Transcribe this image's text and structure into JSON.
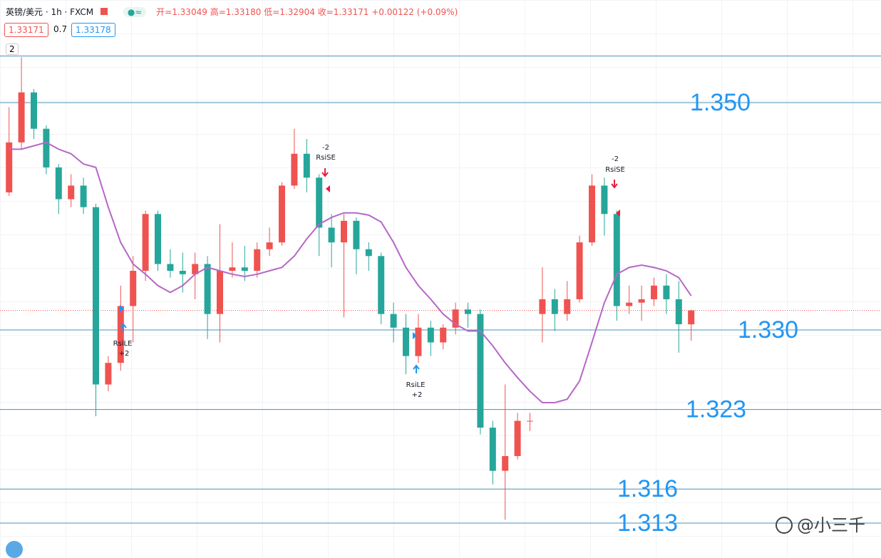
{
  "header": {
    "symbol": "英镑/美元 · 1h · FXCM",
    "open": "开=1.33049",
    "high": "高=1.33180",
    "low": "低=1.32904",
    "close": "收=1.33171",
    "change": "+0.00122 (+0.09%)",
    "bid": "1.33171",
    "spread": "0.7",
    "ask": "1.33178",
    "indicators": "2"
  },
  "watermark": "@小三千",
  "chart_data": {
    "type": "candlestick",
    "up_color": "#ef5350",
    "down_color": "#26a69a",
    "ylim": [
      1.30993,
      1.35903
    ],
    "open": [
      1.3421,
      1.3465,
      1.3509,
      1.3477,
      1.3443,
      1.3415,
      1.3427,
      1.3408,
      1.3252,
      1.3271,
      1.3321,
      1.3352,
      1.3402,
      1.3358,
      1.3352,
      1.3349,
      1.3358,
      1.3314,
      1.3352,
      1.3355,
      1.3352,
      1.3371,
      1.3377,
      1.3427,
      1.3455,
      1.3434,
      1.339,
      1.3377,
      1.3396,
      1.3371,
      1.3365,
      1.3314,
      1.3302,
      1.3277,
      1.3302,
      1.3289,
      1.3302,
      1.3318,
      1.3314,
      1.3214,
      1.3176,
      1.3189,
      1.322,
      1.3314,
      1.3327,
      1.3314,
      1.3327,
      1.3377,
      1.3427,
      1.3402,
      1.3321,
      1.3324,
      1.3327,
      1.3339,
      1.3327,
      1.33049
    ],
    "high": [
      1.3496,
      1.354,
      1.3512,
      1.348,
      1.3446,
      1.3437,
      1.3434,
      1.3411,
      1.3277,
      1.3339,
      1.3365,
      1.3405,
      1.3405,
      1.3371,
      1.3368,
      1.3368,
      1.3365,
      1.3393,
      1.3377,
      1.3374,
      1.3377,
      1.339,
      1.343,
      1.3477,
      1.3468,
      1.3437,
      1.3402,
      1.3402,
      1.3399,
      1.3377,
      1.3368,
      1.3324,
      1.3314,
      1.3314,
      1.3308,
      1.3305,
      1.3324,
      1.3324,
      1.3318,
      1.322,
      1.3252,
      1.3227,
      1.3227,
      1.3355,
      1.3336,
      1.3343,
      1.3383,
      1.3437,
      1.3434,
      1.3405,
      1.3339,
      1.3339,
      1.3346,
      1.3349,
      1.3343,
      1.3318
    ],
    "low": [
      1.3418,
      1.3459,
      1.3468,
      1.3437,
      1.3402,
      1.3408,
      1.3402,
      1.3224,
      1.3246,
      1.3264,
      1.3289,
      1.3343,
      1.3352,
      1.3346,
      1.3333,
      1.3327,
      1.3292,
      1.3289,
      1.3346,
      1.3343,
      1.3346,
      1.3365,
      1.3374,
      1.3424,
      1.3421,
      1.3365,
      1.3355,
      1.3311,
      1.3349,
      1.3352,
      1.3305,
      1.3289,
      1.3261,
      1.3271,
      1.3277,
      1.3283,
      1.3296,
      1.3302,
      1.3208,
      1.3164,
      1.3133,
      1.3186,
      1.3211,
      1.3289,
      1.3299,
      1.3308,
      1.3324,
      1.3374,
      1.3383,
      1.3308,
      1.3314,
      1.3308,
      1.3321,
      1.3314,
      1.328,
      1.32904
    ],
    "close": [
      1.3465,
      1.3509,
      1.3477,
      1.3443,
      1.3415,
      1.3427,
      1.3408,
      1.3252,
      1.3271,
      1.3321,
      1.3352,
      1.3402,
      1.3358,
      1.3352,
      1.3349,
      1.3358,
      1.3314,
      1.3352,
      1.3355,
      1.3352,
      1.3371,
      1.3377,
      1.3427,
      1.3455,
      1.3434,
      1.339,
      1.3377,
      1.3396,
      1.3371,
      1.3365,
      1.3314,
      1.3302,
      1.3277,
      1.3302,
      1.3289,
      1.3302,
      1.3318,
      1.3314,
      1.3214,
      1.3176,
      1.3189,
      1.322,
      1.322,
      1.3327,
      1.3314,
      1.3327,
      1.3377,
      1.3427,
      1.3402,
      1.3321,
      1.3324,
      1.3327,
      1.3339,
      1.3327,
      1.3305,
      1.33171
    ],
    "ma": {
      "color": "#b667c6",
      "values": [
        1.3459,
        1.3459,
        1.3462,
        1.3465,
        1.3459,
        1.3455,
        1.3446,
        1.3443,
        1.3408,
        1.3377,
        1.3358,
        1.3349,
        1.3339,
        1.3333,
        1.3339,
        1.3349,
        1.3355,
        1.3352,
        1.3349,
        1.3347,
        1.3349,
        1.3352,
        1.3355,
        1.3365,
        1.338,
        1.3393,
        1.3399,
        1.3403,
        1.3403,
        1.3401,
        1.3395,
        1.3377,
        1.3355,
        1.3339,
        1.3327,
        1.3314,
        1.3305,
        1.3299,
        1.3299,
        1.3286,
        1.3271,
        1.3258,
        1.3246,
        1.3236,
        1.3236,
        1.3239,
        1.3255,
        1.3289,
        1.3324,
        1.3349,
        1.3355,
        1.3357,
        1.3355,
        1.3352,
        1.3346,
        1.333
      ]
    },
    "levels": [
      {
        "value": 1.3541,
        "label": null
      },
      {
        "value": 1.35,
        "label": "1.350"
      },
      {
        "value": 1.33,
        "label": "1.330"
      },
      {
        "value": 1.323,
        "label": "1.323"
      },
      {
        "value": 1.316,
        "label": "1.316"
      },
      {
        "value": 1.313,
        "label": "1.313"
      }
    ],
    "level_color": "#4a90b8",
    "label_color": "#2196f3",
    "signals": [
      {
        "name": "RsiLE",
        "qty": "+2"
      },
      {
        "name": "RsiSE",
        "qty": "-2"
      },
      {
        "name": "RsiLE",
        "qty": "+2"
      },
      {
        "name": "RsiSE",
        "qty": "-2"
      }
    ]
  }
}
